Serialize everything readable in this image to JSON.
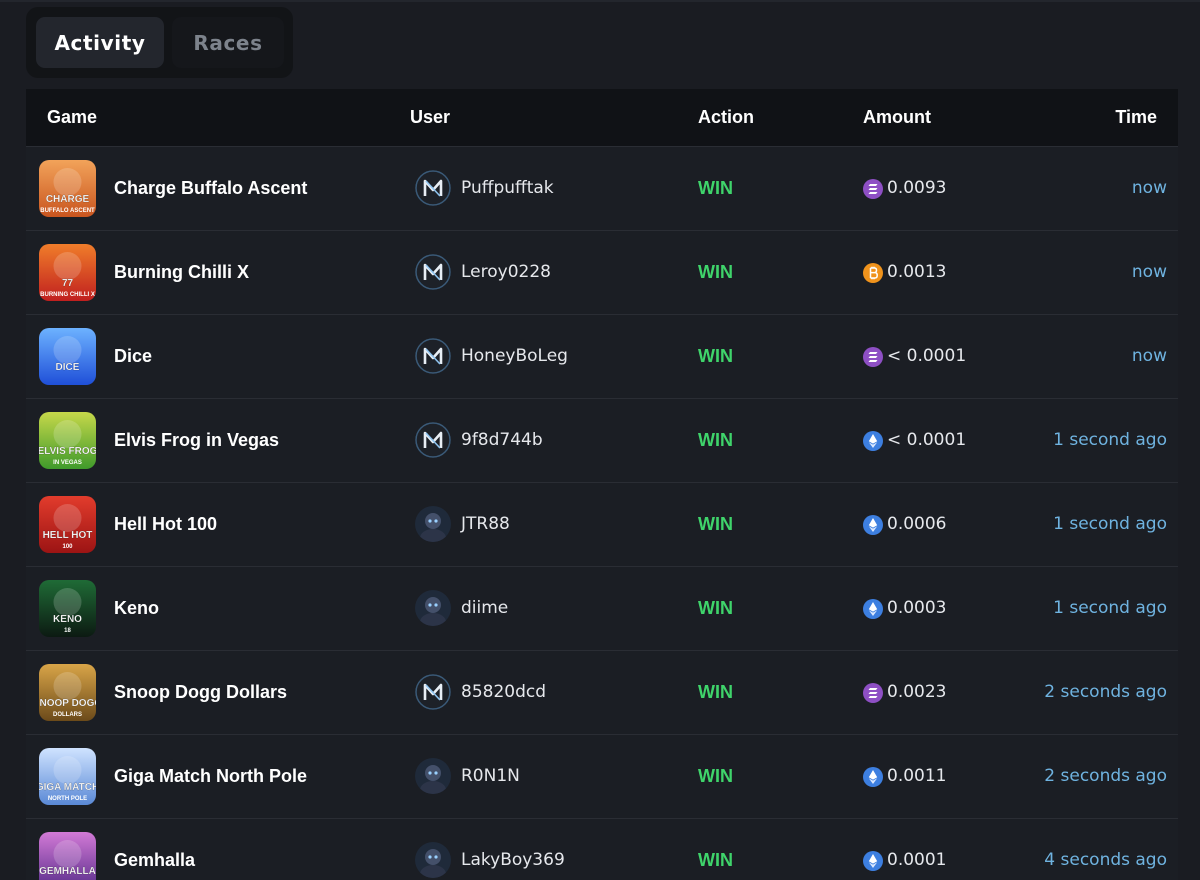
{
  "tabs": [
    {
      "label": "Activity",
      "active": true
    },
    {
      "label": "Races",
      "active": false
    }
  ],
  "table": {
    "headers": {
      "game": "Game",
      "user": "User",
      "action": "Action",
      "amount": "Amount",
      "time": "Time"
    },
    "rows": [
      {
        "game": "Charge Buffalo Ascent",
        "thumb_text": "CHARGE",
        "thumb_sub": "BUFFALO ASCENT",
        "user": "Puffpufftak",
        "avatar": "logo-avatar",
        "action": "WIN",
        "coin": "solana-icon",
        "amount": "0.0093",
        "time": "now"
      },
      {
        "game": "Burning Chilli X",
        "thumb_text": "77",
        "thumb_sub": "BURNING CHILLI X",
        "user": "Leroy0228",
        "avatar": "logo-avatar",
        "action": "WIN",
        "coin": "bitcoin-icon",
        "amount": "0.0013",
        "time": "now"
      },
      {
        "game": "Dice",
        "thumb_text": "DICE",
        "thumb_sub": "",
        "user": "HoneyBoLeg",
        "avatar": "logo-avatar",
        "action": "WIN",
        "coin": "solana-icon",
        "amount": "< 0.0001",
        "time": "now"
      },
      {
        "game": "Elvis Frog in Vegas",
        "thumb_text": "ELVIS FROG",
        "thumb_sub": "IN VEGAS",
        "user": "9f8d744b",
        "avatar": "logo-avatar",
        "action": "WIN",
        "coin": "ethereum-icon",
        "amount": "< 0.0001",
        "time": "1 second ago"
      },
      {
        "game": "Hell Hot 100",
        "thumb_text": "HELL HOT",
        "thumb_sub": "100",
        "user": "JTR88",
        "avatar": "photo-avatar",
        "action": "WIN",
        "coin": "ethereum-icon",
        "amount": "0.0006",
        "time": "1 second ago"
      },
      {
        "game": "Keno",
        "thumb_text": "KENO",
        "thumb_sub": "18",
        "user": "diime",
        "avatar": "photo-avatar",
        "action": "WIN",
        "coin": "ethereum-icon",
        "amount": "0.0003",
        "time": "1 second ago"
      },
      {
        "game": "Snoop Dogg Dollars",
        "thumb_text": "SNOOP DOGG",
        "thumb_sub": "DOLLARS",
        "user": "85820dcd",
        "avatar": "logo-avatar",
        "action": "WIN",
        "coin": "solana-icon",
        "amount": "0.0023",
        "time": "2 seconds ago"
      },
      {
        "game": "Giga Match North Pole",
        "thumb_text": "GIGA MATCH",
        "thumb_sub": "NORTH POLE",
        "user": "R0N1N",
        "avatar": "photo-avatar",
        "action": "WIN",
        "coin": "ethereum-icon",
        "amount": "0.0011",
        "time": "2 seconds ago"
      },
      {
        "game": "Gemhalla",
        "thumb_text": "GEMHALLA",
        "thumb_sub": "",
        "user": "LakyBoy369",
        "avatar": "photo-avatar",
        "action": "WIN",
        "coin": "ethereum-icon",
        "amount": "0.0001",
        "time": "4 seconds ago"
      }
    ]
  },
  "colors": {
    "background": "#1a1c22",
    "header_bg": "#101216",
    "win": "#3fd46b",
    "time": "#6fb3e0",
    "solana": "#8e4fc4",
    "bitcoin": "#f0931c",
    "ethereum": "#3d7fe0"
  }
}
